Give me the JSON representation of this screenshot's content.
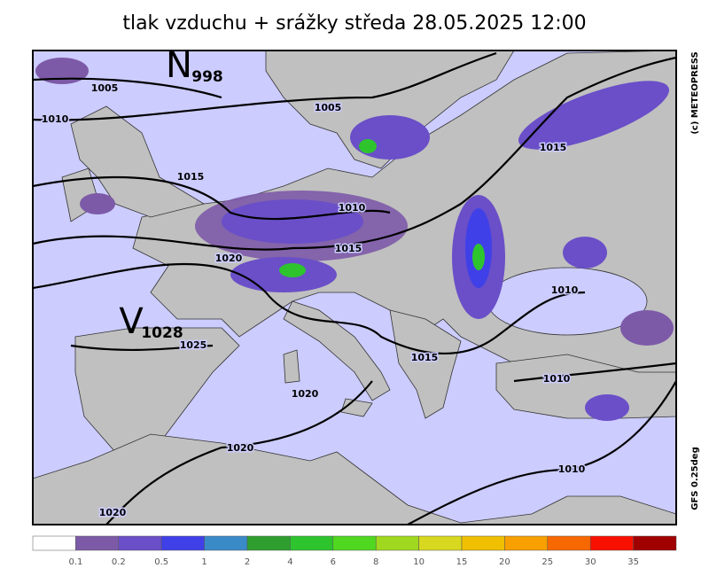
{
  "title": "tlak vzduchu + srážky  středa 28.05.2025 12:00",
  "credit": "(c) METEOPRESS",
  "model": "GFS  0.25deg",
  "pressure_centers": [
    {
      "letter": "N",
      "value": "998"
    },
    {
      "letter": "V",
      "value": "1028"
    }
  ],
  "isobar_labels": [
    "1005",
    "1010",
    "1005",
    "1015",
    "1010",
    "1015",
    "1020",
    "1015",
    "1010",
    "1025",
    "1015",
    "1010",
    "1020",
    "1020",
    "1010",
    "1020"
  ],
  "legend": {
    "colors": [
      "#ffffff",
      "#7d5aa8",
      "#6a4fc8",
      "#4040e8",
      "#3a8ac8",
      "#2e9e2e",
      "#2ec42e",
      "#50d820",
      "#a0d820",
      "#d8d820",
      "#f0c000",
      "#f8a000",
      "#f86800",
      "#f81000",
      "#a00000"
    ],
    "labels": [
      0.1,
      0.2,
      0.5,
      1,
      2,
      4,
      6,
      8,
      10,
      15,
      20,
      25,
      30,
      35
    ]
  }
}
